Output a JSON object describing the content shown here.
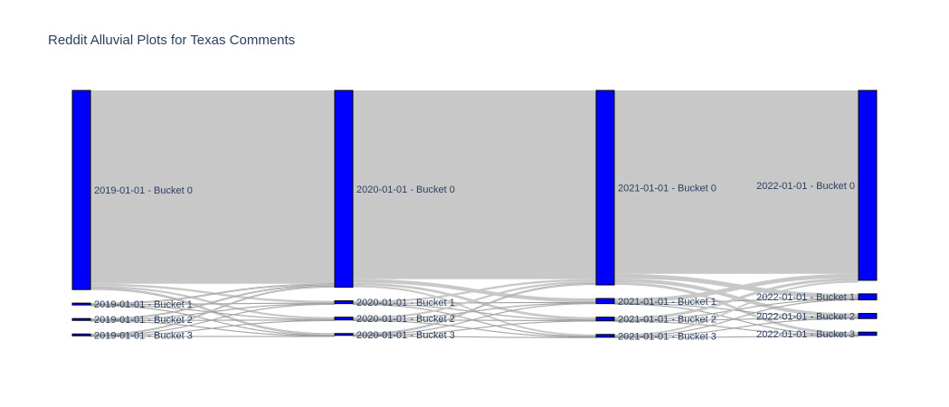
{
  "chart_data": {
    "type": "sankey",
    "title": "Reddit Alluvial Plots for Texas Comments",
    "node_color": "#0000ff",
    "node_stroke": "#000000",
    "link_color": "#c8c8c8",
    "columns": [
      "2019-01-01",
      "2020-01-01",
      "2021-01-01",
      "2022-01-01"
    ],
    "nodes": [
      {
        "id": "2019-0",
        "label": "2019-01-01 - Bucket 0",
        "col": 0,
        "value": 86
      },
      {
        "id": "2019-1",
        "label": "2019-01-01 - Bucket 1",
        "col": 0,
        "value": 0.8
      },
      {
        "id": "2019-2",
        "label": "2019-01-01 - Bucket 2",
        "col": 0,
        "value": 0.8
      },
      {
        "id": "2019-3",
        "label": "2019-01-01 - Bucket 3",
        "col": 0,
        "value": 0.8
      },
      {
        "id": "2020-0",
        "label": "2020-01-01 - Bucket 0",
        "col": 1,
        "value": 85
      },
      {
        "id": "2020-1",
        "label": "2020-01-01 - Bucket 1",
        "col": 1,
        "value": 1.2
      },
      {
        "id": "2020-2",
        "label": "2020-01-01 - Bucket 2",
        "col": 1,
        "value": 1.2
      },
      {
        "id": "2020-3",
        "label": "2020-01-01 - Bucket 3",
        "col": 1,
        "value": 0.8
      },
      {
        "id": "2021-0",
        "label": "2021-01-01 - Bucket 0",
        "col": 2,
        "value": 84
      },
      {
        "id": "2021-1",
        "label": "2021-01-01 - Bucket 1",
        "col": 2,
        "value": 2.2
      },
      {
        "id": "2021-2",
        "label": "2021-01-01 - Bucket 2",
        "col": 2,
        "value": 1.6
      },
      {
        "id": "2021-3",
        "label": "2021-01-01 - Bucket 3",
        "col": 2,
        "value": 1.2
      },
      {
        "id": "2022-0",
        "label": "2022-01-01 - Bucket 0",
        "col": 3,
        "value": 82
      },
      {
        "id": "2022-1",
        "label": "2022-01-01 - Bucket 1",
        "col": 3,
        "value": 2.6
      },
      {
        "id": "2022-2",
        "label": "2022-01-01 - Bucket 2",
        "col": 3,
        "value": 2.2
      },
      {
        "id": "2022-3",
        "label": "2022-01-01 - Bucket 3",
        "col": 3,
        "value": 1.4
      }
    ],
    "links": [
      {
        "source": "2019-0",
        "target": "2020-0",
        "value": 83.5
      },
      {
        "source": "2019-0",
        "target": "2020-1",
        "value": 0.9
      },
      {
        "source": "2019-0",
        "target": "2020-2",
        "value": 0.9
      },
      {
        "source": "2019-0",
        "target": "2020-3",
        "value": 0.7
      },
      {
        "source": "2019-1",
        "target": "2020-0",
        "value": 0.5
      },
      {
        "source": "2019-1",
        "target": "2020-1",
        "value": 0.1
      },
      {
        "source": "2019-1",
        "target": "2020-2",
        "value": 0.1
      },
      {
        "source": "2019-1",
        "target": "2020-3",
        "value": 0.1
      },
      {
        "source": "2019-2",
        "target": "2020-0",
        "value": 0.5
      },
      {
        "source": "2019-2",
        "target": "2020-1",
        "value": 0.1
      },
      {
        "source": "2019-2",
        "target": "2020-2",
        "value": 0.1
      },
      {
        "source": "2019-2",
        "target": "2020-3",
        "value": 0.1
      },
      {
        "source": "2019-3",
        "target": "2020-0",
        "value": 0.5
      },
      {
        "source": "2019-3",
        "target": "2020-1",
        "value": 0.1
      },
      {
        "source": "2019-3",
        "target": "2020-2",
        "value": 0.1
      },
      {
        "source": "2019-3",
        "target": "2020-3",
        "value": 0.1
      },
      {
        "source": "2020-0",
        "target": "2021-0",
        "value": 81.5
      },
      {
        "source": "2020-0",
        "target": "2021-1",
        "value": 1.6
      },
      {
        "source": "2020-0",
        "target": "2021-2",
        "value": 1.1
      },
      {
        "source": "2020-0",
        "target": "2021-3",
        "value": 0.8
      },
      {
        "source": "2020-1",
        "target": "2021-0",
        "value": 0.9
      },
      {
        "source": "2020-1",
        "target": "2021-1",
        "value": 0.1
      },
      {
        "source": "2020-1",
        "target": "2021-2",
        "value": 0.1
      },
      {
        "source": "2020-1",
        "target": "2021-3",
        "value": 0.1
      },
      {
        "source": "2020-2",
        "target": "2021-0",
        "value": 0.9
      },
      {
        "source": "2020-2",
        "target": "2021-1",
        "value": 0.1
      },
      {
        "source": "2020-2",
        "target": "2021-2",
        "value": 0.1
      },
      {
        "source": "2020-2",
        "target": "2021-3",
        "value": 0.1
      },
      {
        "source": "2020-3",
        "target": "2021-0",
        "value": 0.6
      },
      {
        "source": "2020-3",
        "target": "2021-1",
        "value": 0.1
      },
      {
        "source": "2020-3",
        "target": "2021-2",
        "value": 0.05
      },
      {
        "source": "2020-3",
        "target": "2021-3",
        "value": 0.05
      },
      {
        "source": "2021-0",
        "target": "2022-0",
        "value": 79.2
      },
      {
        "source": "2021-0",
        "target": "2022-1",
        "value": 2.0
      },
      {
        "source": "2021-0",
        "target": "2022-2",
        "value": 1.6
      },
      {
        "source": "2021-0",
        "target": "2022-3",
        "value": 1.2
      },
      {
        "source": "2021-1",
        "target": "2022-0",
        "value": 1.8
      },
      {
        "source": "2021-1",
        "target": "2022-1",
        "value": 0.2
      },
      {
        "source": "2021-1",
        "target": "2022-2",
        "value": 0.1
      },
      {
        "source": "2021-1",
        "target": "2022-3",
        "value": 0.1
      },
      {
        "source": "2021-2",
        "target": "2022-0",
        "value": 1.2
      },
      {
        "source": "2021-2",
        "target": "2022-1",
        "value": 0.2
      },
      {
        "source": "2021-2",
        "target": "2022-2",
        "value": 0.1
      },
      {
        "source": "2021-2",
        "target": "2022-3",
        "value": 0.1
      },
      {
        "source": "2021-3",
        "target": "2022-0",
        "value": 0.8
      },
      {
        "source": "2021-3",
        "target": "2022-1",
        "value": 0.2
      },
      {
        "source": "2021-3",
        "target": "2022-2",
        "value": 0.1
      },
      {
        "source": "2021-3",
        "target": "2022-3",
        "value": 0.1
      }
    ]
  }
}
